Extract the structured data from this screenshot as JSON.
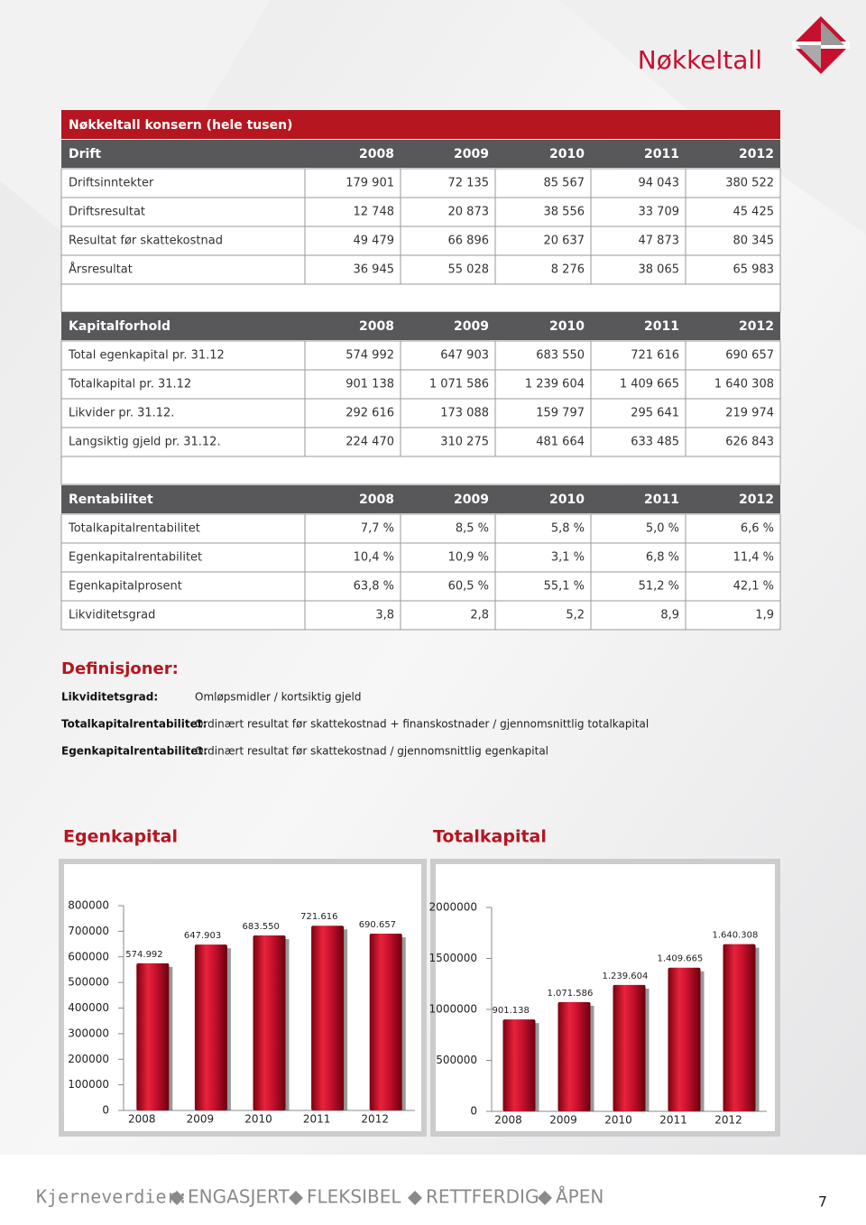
{
  "header": {
    "title": "Nøkkeltall"
  },
  "table": {
    "title": "Nøkkeltall konsern (hele tusen)",
    "sections": [
      {
        "header": [
          "Drift",
          "2008",
          "2009",
          "2010",
          "2011",
          "2012"
        ],
        "rows": [
          [
            "Driftsinntekter",
            "179 901",
            "72 135",
            "85 567",
            "94 043",
            "380 522"
          ],
          [
            "Driftsresultat",
            "12 748",
            "20 873",
            "38 556",
            "33 709",
            "45 425"
          ],
          [
            "Resultat før skattekostnad",
            "49 479",
            "66 896",
            "20 637",
            "47 873",
            "80 345"
          ],
          [
            "Årsresultat",
            "36 945",
            "55 028",
            "8 276",
            "38 065",
            "65 983"
          ]
        ]
      },
      {
        "header": [
          "Kapitalforhold",
          "2008",
          "2009",
          "2010",
          "2011",
          "2012"
        ],
        "rows": [
          [
            "Total egenkapital pr. 31.12",
            "574 992",
            "647 903",
            "683 550",
            "721 616",
            "690 657"
          ],
          [
            "Totalkapital pr. 31.12",
            "901 138",
            "1 071 586",
            "1 239 604",
            "1 409 665",
            "1 640 308"
          ],
          [
            "Likvider pr. 31.12.",
            "292 616",
            "173 088",
            "159 797",
            "295 641",
            "219 974"
          ],
          [
            "Langsiktig gjeld pr. 31.12.",
            "224 470",
            "310 275",
            "481 664",
            "633 485",
            "626 843"
          ]
        ]
      },
      {
        "header": [
          "Rentabilitet",
          "2008",
          "2009",
          "2010",
          "2011",
          "2012"
        ],
        "rows": [
          [
            "Totalkapitalrentabilitet",
            "7,7 %",
            "8,5 %",
            "5,8 %",
            "5,0 %",
            "6,6 %"
          ],
          [
            "Egenkapitalrentabilitet",
            "10,4 %",
            "10,9 %",
            "3,1 %",
            "6,8 %",
            "11,4 %"
          ],
          [
            "Egenkapitalprosent",
            "63,8 %",
            "60,5 %",
            "55,1 %",
            "51,2 %",
            "42,1 %"
          ],
          [
            "Likviditetsgrad",
            "3,8",
            "2,8",
            "5,2",
            "8,9",
            "1,9"
          ]
        ]
      }
    ]
  },
  "definitions": {
    "title": "Definisjoner:",
    "items": [
      {
        "term": "Likviditetsgrad:",
        "text": "Omløpsmidler / kortsiktig gjeld"
      },
      {
        "term": "Totalkapitalrentabilitet:",
        "text": "Ordinært resultat før skattekostnad + finanskostnader / gjennomsnittlig totalkapital"
      },
      {
        "term": "Egenkapitalrentabilitet:",
        "text": "Ordinært resultat før skattekostnad / gjennomsnittlig egenkapital"
      }
    ]
  },
  "chart_data": [
    {
      "type": "bar",
      "title": "Egenkapital",
      "categories": [
        "2008",
        "2009",
        "2010",
        "2011",
        "2012"
      ],
      "values": [
        574992,
        647903,
        683550,
        721616,
        690657
      ],
      "value_labels": [
        "574.992",
        "647.903",
        "683.550",
        "721.616",
        "690.657"
      ],
      "color": "#c8102e",
      "ylim": [
        0,
        800000
      ],
      "yticks": [
        0,
        100000,
        200000,
        300000,
        400000,
        500000,
        600000,
        700000,
        800000
      ]
    },
    {
      "type": "bar",
      "title": "Totalkapital",
      "categories": [
        "2008",
        "2009",
        "2010",
        "2011",
        "2012"
      ],
      "values": [
        901138,
        1071586,
        1239604,
        1409665,
        1640308
      ],
      "value_labels": [
        "901.138",
        "1.071.586",
        "1.239.604",
        "1.409.665",
        "1.640.308"
      ],
      "color": "#c8102e",
      "ylim": [
        0,
        2000000
      ],
      "yticks": [
        0,
        500000,
        1000000,
        1500000,
        2000000
      ]
    }
  ],
  "footer": {
    "label": "Kjerneverdier:",
    "values": [
      "ENGASJERT",
      "FLEKSIBEL",
      "RETTFERDIG",
      "ÅPEN"
    ],
    "page": "7"
  }
}
